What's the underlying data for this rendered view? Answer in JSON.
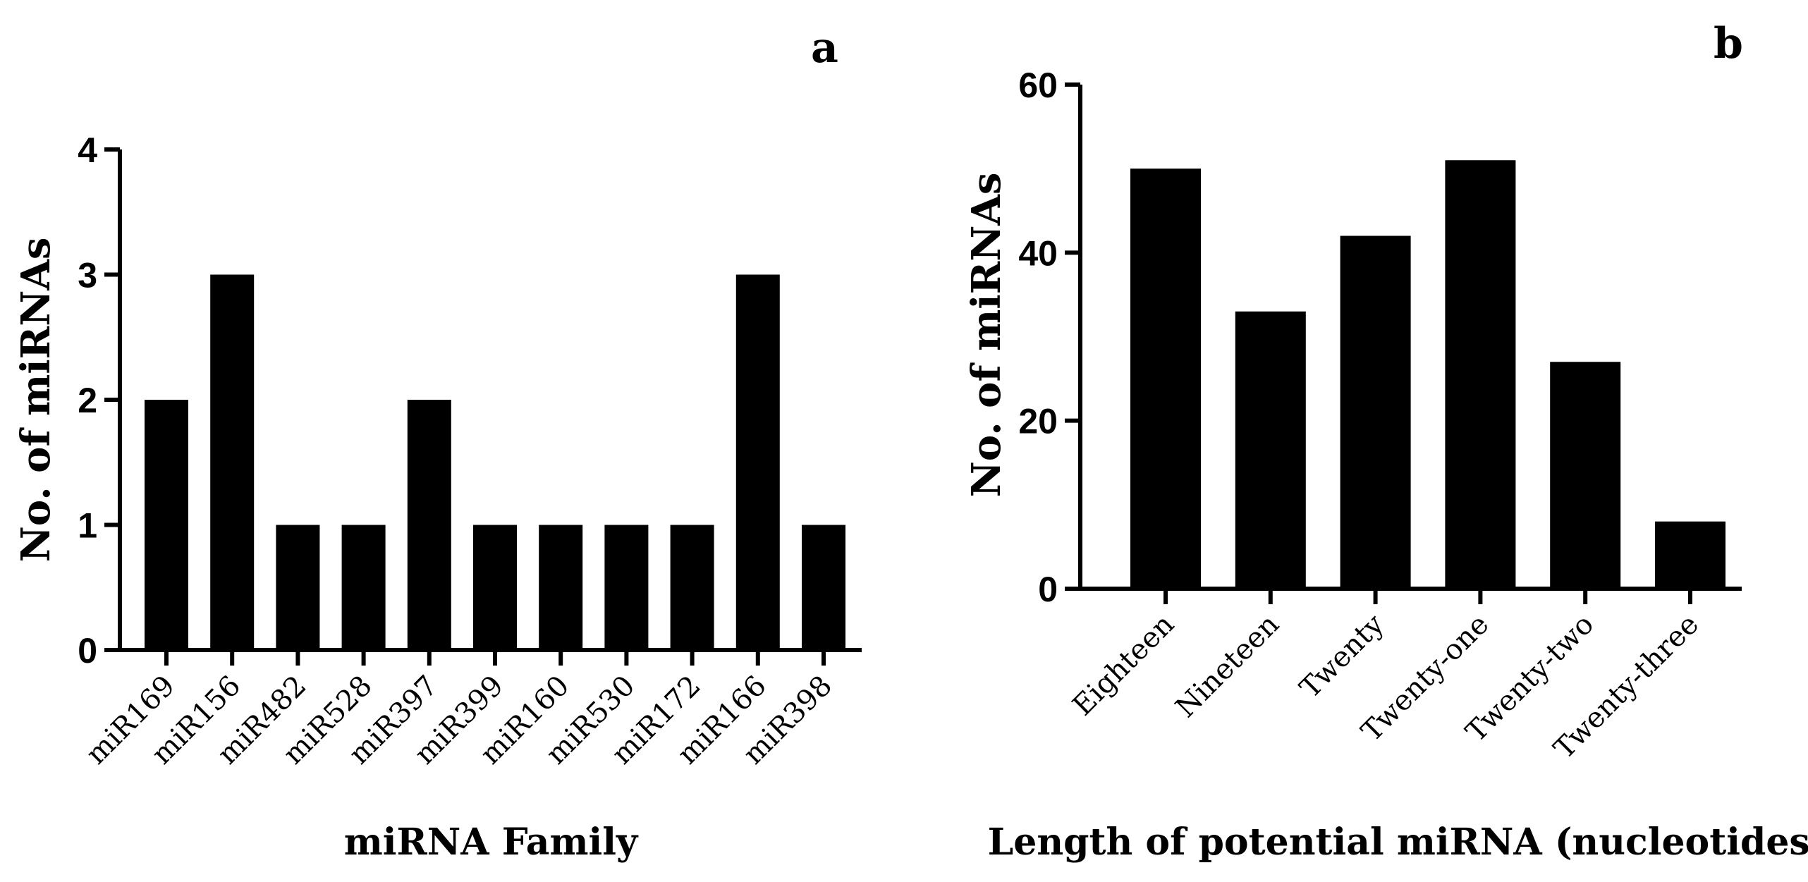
{
  "chart_data": [
    {
      "type": "bar",
      "panel": "a",
      "title": "",
      "xlabel": "miRNA Family",
      "ylabel": "No. of miRNAs",
      "categories": [
        "miR169",
        "miR156",
        "miR482",
        "miR528",
        "miR397",
        "miR399",
        "miR160",
        "miR530",
        "miR172",
        "miR166",
        "miR398"
      ],
      "values": [
        2,
        3,
        1,
        1,
        2,
        1,
        1,
        1,
        1,
        3,
        1
      ],
      "ylim": [
        0,
        4
      ],
      "yticks": [
        0,
        1,
        2,
        3,
        4
      ],
      "bar_color": "#000000",
      "grid": false
    },
    {
      "type": "bar",
      "panel": "b",
      "title": "",
      "xlabel": "Length of potential miRNA (nucleotides)",
      "ylabel": "No. of miRNAs",
      "categories": [
        "Eighteen",
        "Nineteen",
        "Twenty",
        "Twenty-one",
        "Twenty-two",
        "Twenty-three"
      ],
      "values": [
        50,
        33,
        42,
        51,
        27,
        8
      ],
      "ylim": [
        0,
        60
      ],
      "yticks": [
        0,
        20,
        40,
        60
      ],
      "bar_color": "#000000",
      "grid": false
    }
  ]
}
